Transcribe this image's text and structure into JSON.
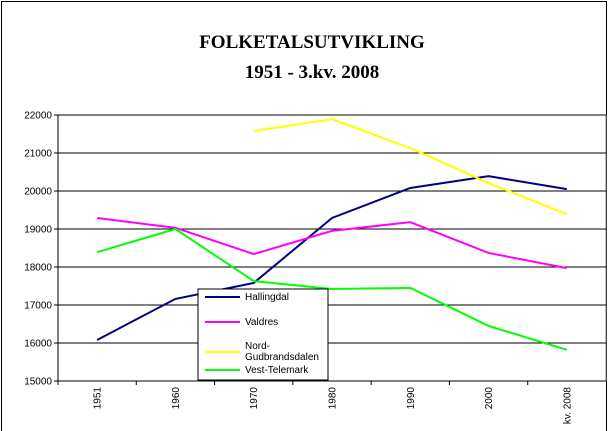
{
  "chart_data": {
    "type": "line",
    "title": "FOLKETALSUTVIKLING",
    "subtitle": "1951 - 3.kv. 2008",
    "categories": [
      "1951",
      "1960",
      "1970",
      "1980",
      "1990",
      "2000",
      "kv. 2008"
    ],
    "series": [
      {
        "name": "Hallingdal",
        "color": "#000080",
        "values": [
          16080,
          17160,
          17580,
          19290,
          20080,
          20390,
          20050
        ]
      },
      {
        "name": "Valdres",
        "color": "#ff00ff",
        "values": [
          19290,
          19030,
          18340,
          18950,
          19180,
          18370,
          17970
        ]
      },
      {
        "name": "Nord-Gudbrandsdalen",
        "color": "#ffff00",
        "values": [
          null,
          null,
          21580,
          21890,
          21130,
          20210,
          19390
        ]
      },
      {
        "name": "Vest-Telemark",
        "color": "#00ff00",
        "values": [
          18390,
          19000,
          17630,
          17420,
          17450,
          16450,
          15820
        ]
      }
    ],
    "ylim": [
      15000,
      22000
    ],
    "yticks": [
      15000,
      16000,
      17000,
      18000,
      19000,
      20000,
      21000,
      22000
    ],
    "grid": true
  }
}
